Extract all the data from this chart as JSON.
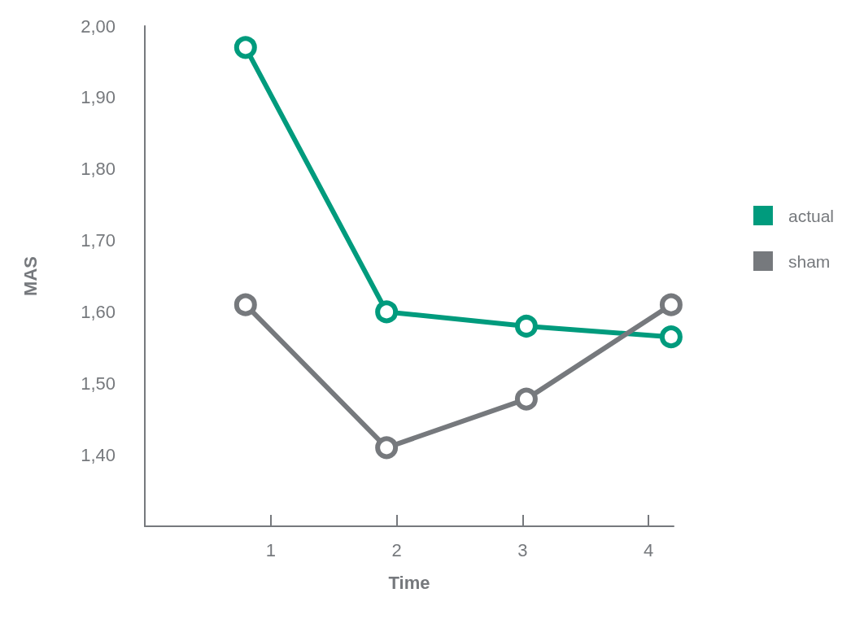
{
  "chart_data": {
    "type": "line",
    "xlabel": "Time",
    "ylabel": "MAS",
    "xlim": [
      0,
      4.2
    ],
    "xticks": [
      1,
      2,
      3,
      4
    ],
    "ylim": [
      1.3,
      2.0
    ],
    "yticks": [
      {
        "value": 1.4,
        "label": "1,40"
      },
      {
        "value": 1.5,
        "label": "1,50"
      },
      {
        "value": 1.6,
        "label": "1,60"
      },
      {
        "value": 1.7,
        "label": "1,70"
      },
      {
        "value": 1.8,
        "label": "1,80"
      },
      {
        "value": 1.9,
        "label": "1,90"
      },
      {
        "value": 2.0,
        "label": "2,00"
      }
    ],
    "x": [
      0.8,
      1.92,
      3.03,
      4.18
    ],
    "series": [
      {
        "name": "actual",
        "color": "#009b7d",
        "values": [
          1.97,
          1.6,
          1.58,
          1.565
        ]
      },
      {
        "name": "sham",
        "color": "#76797d",
        "values": [
          1.61,
          1.41,
          1.478,
          1.61
        ]
      }
    ],
    "marker": "circle",
    "line_style": "solid",
    "grid": false,
    "legend": "right"
  }
}
